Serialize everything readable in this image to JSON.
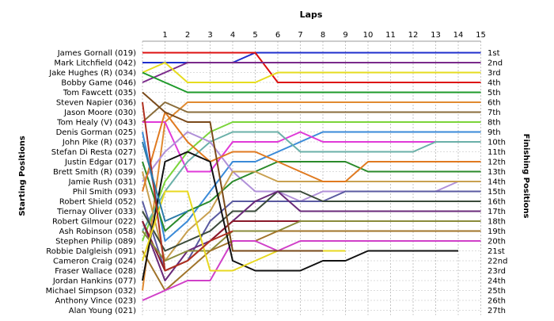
{
  "chart_data": {
    "type": "line",
    "title": "Laps",
    "ylabel_left": "Starting Positions",
    "ylabel_right": "Finishing Positions",
    "laps": [
      1,
      2,
      3,
      4,
      5,
      6,
      7,
      8,
      9,
      10,
      11,
      12,
      13,
      14,
      15
    ],
    "starting_grid": [
      "James Gornall (019)",
      "Mark Litchfield (042)",
      "Jake Hughes (R) (034)",
      "Bobby Game (046)",
      "Tom Fawcett (035)",
      "Steven Napier (036)",
      "Jason Moore (030)",
      "Tom Healy (V) (043)",
      "Denis Gorman (025)",
      "John Pike (R) (037)",
      "Stefan Di Resta (027)",
      "Justin Edgar (017)",
      "Brett Smith (R) (039)",
      "Jamie Rush (031)",
      "Phil Smith (093)",
      "Robert Shield (052)",
      "Tiernay Oliver (033)",
      "Robert Gilmour (022)",
      "Ash Robinson (058)",
      "Stephen Philip (089)",
      "Robbie Dalgleish (091)",
      "Cameron Craig (024)",
      "Fraser Wallace (028)",
      "Jordan Hankins (077)",
      "Michael Simpson (032)",
      "Anthony Vince (023)",
      "Alan Young (021)"
    ],
    "finishing_positions": [
      "1st",
      "2nd",
      "3rd",
      "4th",
      "5th",
      "6th",
      "7th",
      "8th",
      "9th",
      "10th",
      "11th",
      "12th",
      "13th",
      "14th",
      "15th",
      "16th",
      "17th",
      "18th",
      "19th",
      "20th",
      "21st",
      "22nd",
      "23rd",
      "24th",
      "25th",
      "26th",
      "27th"
    ],
    "series": [
      {
        "color": "#1f2ecc",
        "values": [
          2,
          2,
          2,
          2,
          2,
          1,
          1,
          1,
          1,
          1,
          1,
          1,
          1,
          1,
          1,
          1
        ]
      },
      {
        "color": "#dd1010",
        "values": [
          1,
          1,
          1,
          1,
          1,
          1,
          4,
          4,
          4,
          4,
          4,
          4,
          4,
          4,
          4,
          4
        ]
      },
      {
        "color": "#7a2a8a",
        "values": [
          4,
          3,
          2,
          2,
          2,
          2,
          2,
          2,
          2,
          2,
          2,
          2,
          2,
          2,
          2,
          2
        ]
      },
      {
        "color": "#e6dc1e",
        "values": [
          3,
          2,
          4,
          4,
          4,
          4,
          3,
          3,
          3,
          3,
          3,
          3,
          3,
          3,
          3,
          3
        ]
      },
      {
        "color": "#1e9a2a",
        "values": [
          3,
          4,
          5,
          5,
          5,
          5,
          5,
          5,
          5,
          5,
          5,
          5,
          5,
          5,
          5,
          5
        ]
      },
      {
        "color": "#e08a30",
        "values": [
          25,
          8,
          6,
          6,
          6,
          6,
          6,
          6,
          6,
          6,
          6,
          6,
          6,
          6,
          6,
          6
        ]
      },
      {
        "color": "#8a6d3b",
        "values": [
          8,
          6,
          7,
          7,
          7,
          7,
          7,
          7,
          7,
          7,
          7,
          7,
          7,
          7,
          7,
          7
        ]
      },
      {
        "color": "#7ad43a",
        "values": [
          20,
          14,
          11,
          9,
          8,
          8,
          8,
          8,
          8,
          8,
          8,
          8,
          8,
          8,
          8,
          8
        ]
      },
      {
        "color": "#3a8ad8",
        "values": [
          9,
          20,
          18,
          15,
          12,
          12,
          11,
          10,
          9,
          9,
          9,
          9,
          9,
          9,
          9,
          9
        ]
      },
      {
        "color": "#e03ad8",
        "values": [
          8,
          8,
          13,
          13,
          10,
          10,
          10,
          9,
          10,
          10,
          10,
          10,
          10,
          10,
          10,
          10
        ]
      },
      {
        "color": "#6ab0a8",
        "values": [
          19,
          15,
          12,
          10,
          9,
          9,
          9,
          11,
          11,
          11,
          11,
          11,
          11,
          10,
          10,
          10
        ]
      },
      {
        "color": "#b090d8",
        "values": [
          14,
          11,
          9,
          10,
          13,
          15,
          15,
          16,
          15,
          15,
          15,
          15,
          15,
          15,
          14,
          14
        ]
      },
      {
        "color": "#2a8a2a",
        "values": [
          12,
          19,
          17,
          16,
          14,
          13,
          12,
          12,
          12,
          12,
          13,
          13,
          13,
          13,
          13,
          13
        ]
      },
      {
        "color": "#c8a050",
        "values": [
          13,
          22,
          19,
          17,
          13,
          13,
          14,
          14,
          14,
          14,
          14,
          14,
          14,
          14,
          14,
          14
        ]
      },
      {
        "color": "#e07a20",
        "values": [
          15,
          7,
          10,
          12,
          11,
          11,
          12,
          13,
          14,
          14,
          12,
          12,
          12,
          12,
          12,
          12
        ]
      },
      {
        "color": "#5a5aa0",
        "values": [
          16,
          23,
          22,
          18,
          16,
          16,
          16,
          16,
          16,
          15,
          15,
          15,
          15,
          15,
          15,
          15
        ]
      },
      {
        "color": "#3a4a3a",
        "values": [
          17,
          21,
          20,
          19,
          17,
          17,
          15,
          15,
          16,
          16,
          16,
          16,
          16,
          16,
          16,
          16
        ]
      },
      {
        "color": "#6a2a7a",
        "values": [
          18,
          24,
          21,
          20,
          18,
          16,
          15,
          17,
          17,
          17,
          17,
          17,
          17,
          17,
          17,
          17
        ]
      },
      {
        "color": "#8a1a2a",
        "values": [
          18,
          23,
          22,
          20,
          18,
          18,
          18,
          18
        ]
      },
      {
        "color": "#8a8a3a",
        "values": [
          19,
          22,
          21,
          21,
          19,
          19,
          19,
          18,
          18,
          18,
          18,
          18,
          18,
          18,
          18,
          18
        ]
      },
      {
        "color": "#a0742a",
        "values": [
          21,
          25,
          23,
          21,
          20,
          20,
          19,
          19,
          19,
          19,
          19,
          19,
          19,
          19,
          19,
          19
        ]
      },
      {
        "color": "#d040c8",
        "values": [
          26,
          25,
          24,
          24,
          20,
          20,
          21,
          20,
          20,
          20,
          20,
          20,
          20,
          20,
          20,
          20
        ]
      },
      {
        "color": "#111111",
        "values": [
          24,
          12,
          11,
          12,
          22,
          23,
          23,
          23,
          22,
          22,
          21,
          21,
          21,
          21,
          21
        ]
      },
      {
        "color": "#e8d820",
        "values": [
          22,
          15,
          15,
          23,
          23,
          22,
          21,
          21,
          21,
          21
        ]
      },
      {
        "color": "#7a4a1a",
        "values": [
          5,
          7,
          8,
          8,
          21,
          21,
          21,
          21,
          21
        ]
      },
      {
        "color": "#b03020",
        "values": [
          6,
          23,
          22,
          20,
          19
        ]
      },
      {
        "color": "#2a7aa8",
        "values": [
          10,
          18,
          17
        ]
      }
    ]
  }
}
